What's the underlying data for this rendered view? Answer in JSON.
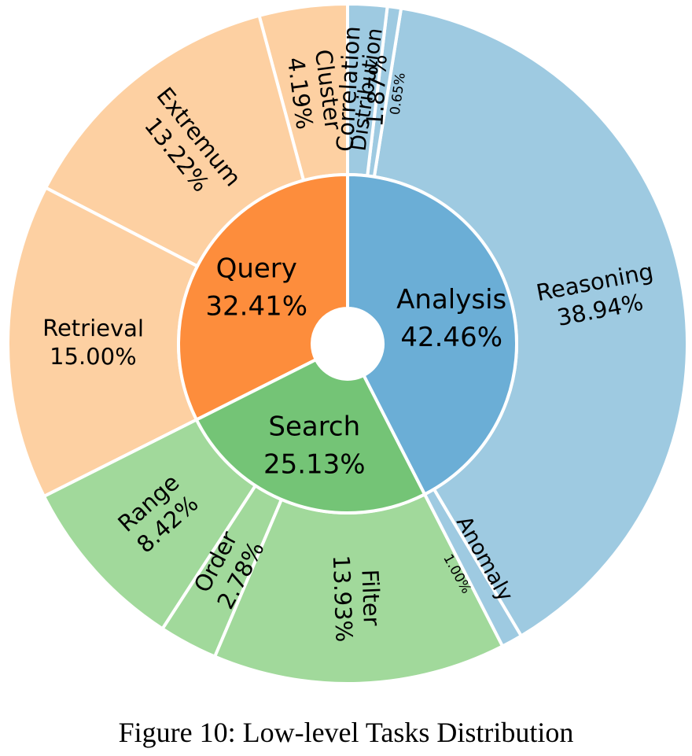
{
  "figure": {
    "caption": "Figure 10: Low-level Tasks Distribution"
  },
  "chart_data": {
    "type": "sunburst",
    "title": "",
    "start_angle_deg": 90,
    "direction": "counterclockwise",
    "inner": [
      {
        "name": "Query",
        "label": "32.41%",
        "value": 32.41,
        "color": "#fd8d3c",
        "children": [
          {
            "name": "Cluster",
            "label": "4.19%",
            "value": 4.19
          },
          {
            "name": "Extremum",
            "label": "13.22%",
            "value": 13.22
          },
          {
            "name": "Retrieval",
            "label": "15.00%",
            "value": 15.0
          }
        ],
        "child_color": "#fdd0a2"
      },
      {
        "name": "Search",
        "label": "25.13%",
        "value": 25.13,
        "color": "#74c476",
        "children": [
          {
            "name": "Range",
            "label": "8.42%",
            "value": 8.42
          },
          {
            "name": "Order",
            "label": "2.78%",
            "value": 2.78
          },
          {
            "name": "Filter",
            "label": "13.93%",
            "value": 13.93
          }
        ],
        "child_color": "#a1d99b"
      },
      {
        "name": "Analysis",
        "label": "42.46%",
        "value": 42.46,
        "color": "#6baed6",
        "children": [
          {
            "name": "Anomaly",
            "label": "1.00%",
            "value": 1.0
          },
          {
            "name": "Reasoning",
            "label": "38.94%",
            "value": 38.94
          },
          {
            "name": "Distribution",
            "label": "0.65%",
            "value": 0.65
          },
          {
            "name": "Correlation",
            "label": "1.87%",
            "value": 1.87
          }
        ],
        "child_color": "#9ecae1"
      }
    ]
  }
}
